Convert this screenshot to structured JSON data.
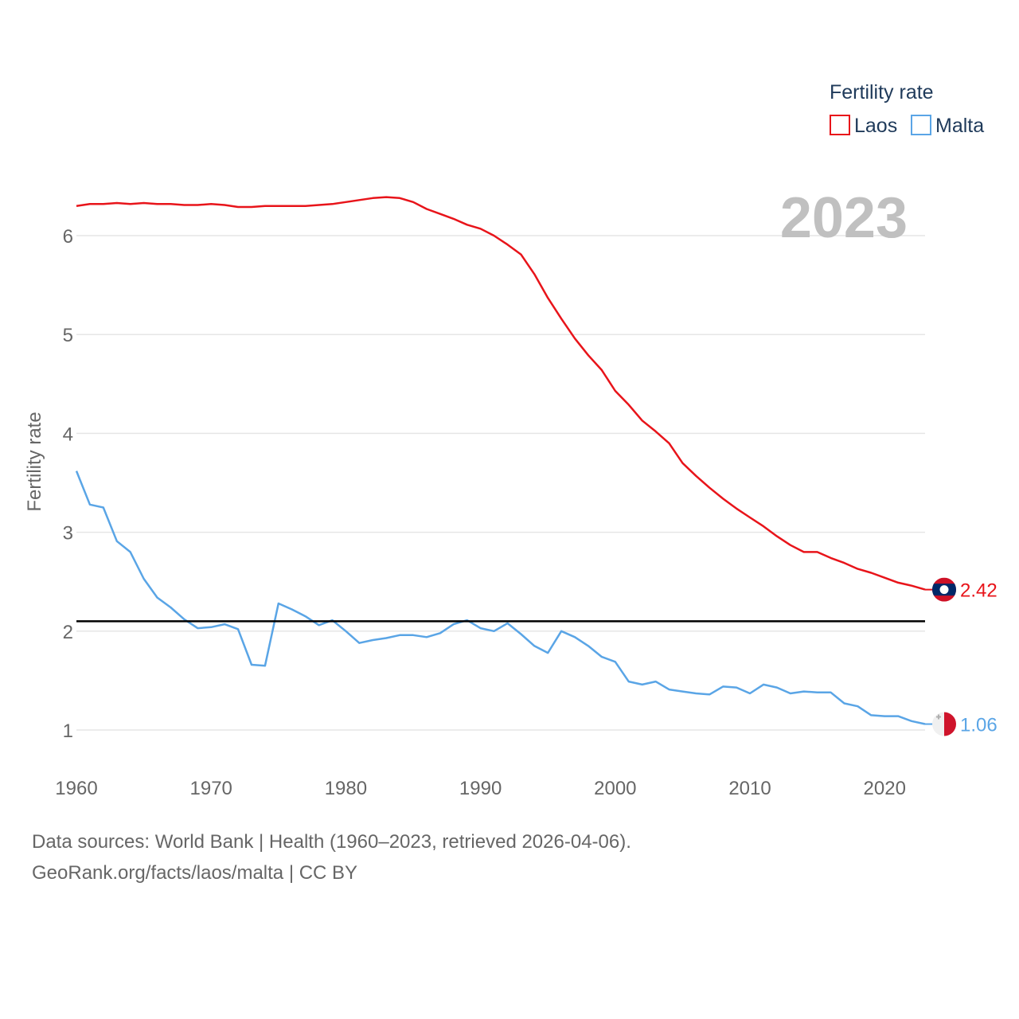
{
  "chart_data": {
    "type": "line",
    "ylabel": "Fertility rate",
    "xlabel": "",
    "xlim": [
      1960,
      2023
    ],
    "ylim": [
      0.4,
      6.8
    ],
    "yticks": [
      1,
      2,
      3,
      4,
      5,
      6
    ],
    "xticks": [
      1960,
      1970,
      1980,
      1990,
      2000,
      2010,
      2020
    ],
    "year_label": "2023",
    "reference_line": 2.1,
    "legend": {
      "title": "Fertility rate",
      "position": "top-right"
    },
    "x": [
      1960,
      1961,
      1962,
      1963,
      1964,
      1965,
      1966,
      1967,
      1968,
      1969,
      1970,
      1971,
      1972,
      1973,
      1974,
      1975,
      1976,
      1977,
      1978,
      1979,
      1980,
      1981,
      1982,
      1983,
      1984,
      1985,
      1986,
      1987,
      1988,
      1989,
      1990,
      1991,
      1992,
      1993,
      1994,
      1995,
      1996,
      1997,
      1998,
      1999,
      2000,
      2001,
      2002,
      2003,
      2004,
      2005,
      2006,
      2007,
      2008,
      2009,
      2010,
      2011,
      2012,
      2013,
      2014,
      2015,
      2016,
      2017,
      2018,
      2019,
      2020,
      2021,
      2022,
      2023
    ],
    "series": [
      {
        "name": "Laos",
        "color": "#e8141a",
        "end_label": "2.42",
        "values": [
          6.3,
          6.32,
          6.32,
          6.33,
          6.32,
          6.33,
          6.32,
          6.32,
          6.31,
          6.31,
          6.32,
          6.31,
          6.29,
          6.29,
          6.3,
          6.3,
          6.3,
          6.3,
          6.31,
          6.32,
          6.34,
          6.36,
          6.38,
          6.39,
          6.38,
          6.34,
          6.27,
          6.22,
          6.17,
          6.11,
          6.07,
          6.0,
          5.91,
          5.81,
          5.61,
          5.37,
          5.16,
          4.96,
          4.79,
          4.64,
          4.43,
          4.29,
          4.13,
          4.02,
          3.9,
          3.7,
          3.57,
          3.45,
          3.34,
          3.24,
          3.15,
          3.06,
          2.96,
          2.87,
          2.8,
          2.8,
          2.74,
          2.69,
          2.63,
          2.59,
          2.54,
          2.49,
          2.46,
          2.42
        ]
      },
      {
        "name": "Malta",
        "color": "#5aa5e6",
        "end_label": "1.06",
        "values": [
          3.62,
          3.28,
          3.25,
          2.91,
          2.8,
          2.53,
          2.34,
          2.24,
          2.12,
          2.03,
          2.04,
          2.07,
          2.02,
          1.66,
          1.65,
          2.28,
          2.22,
          2.15,
          2.06,
          2.11,
          2.0,
          1.88,
          1.91,
          1.93,
          1.96,
          1.96,
          1.94,
          1.98,
          2.07,
          2.11,
          2.03,
          2.0,
          2.08,
          1.97,
          1.85,
          1.78,
          2.0,
          1.94,
          1.85,
          1.74,
          1.69,
          1.49,
          1.46,
          1.49,
          1.41,
          1.39,
          1.37,
          1.36,
          1.44,
          1.43,
          1.37,
          1.46,
          1.43,
          1.37,
          1.39,
          1.38,
          1.38,
          1.27,
          1.24,
          1.15,
          1.14,
          1.14,
          1.09,
          1.06
        ]
      }
    ]
  },
  "footer": {
    "source_line1": "Data sources: World Bank | Health (1960–2023, retrieved 2026-04-06).",
    "source_line2": "GeoRank.org/facts/laos/malta | CC BY"
  }
}
